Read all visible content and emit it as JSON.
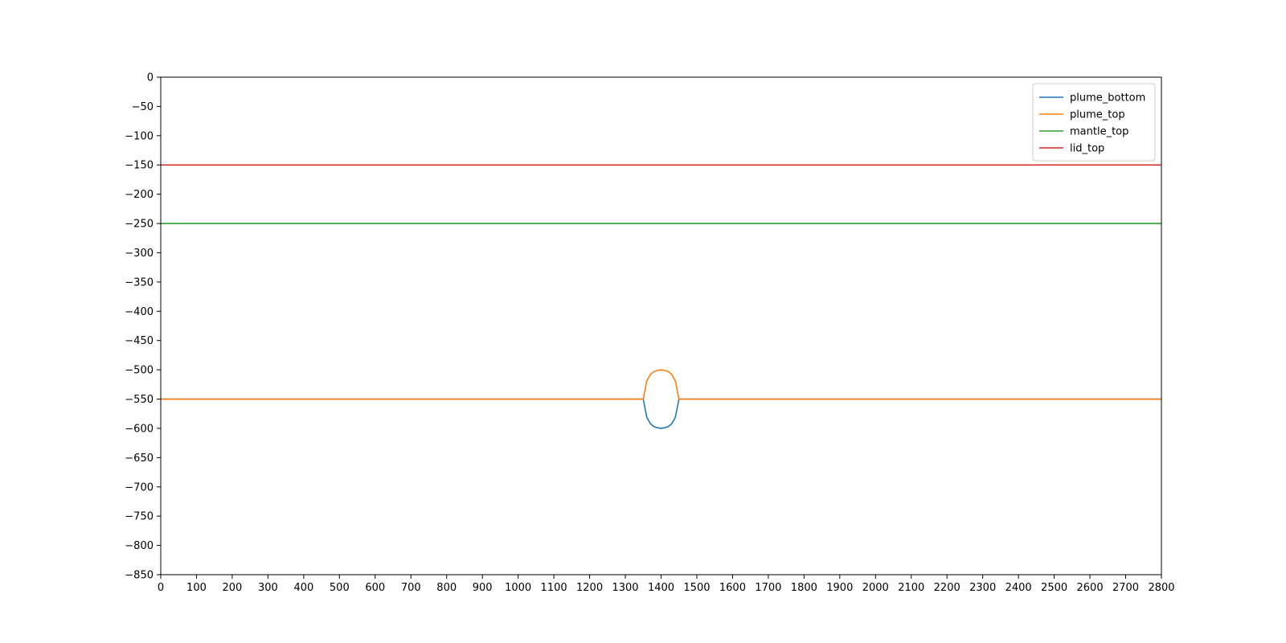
{
  "chart_data": {
    "type": "line",
    "title": "",
    "xlabel": "",
    "ylabel": "",
    "xlim": [
      0,
      2800
    ],
    "ylim": [
      -850,
      0
    ],
    "xticks": [
      0,
      100,
      200,
      300,
      400,
      500,
      600,
      700,
      800,
      900,
      1000,
      1100,
      1200,
      1300,
      1400,
      1500,
      1600,
      1700,
      1800,
      1900,
      2000,
      2100,
      2200,
      2300,
      2400,
      2500,
      2600,
      2700,
      2800
    ],
    "yticks": [
      0,
      -50,
      -100,
      -150,
      -200,
      -250,
      -300,
      -350,
      -400,
      -450,
      -500,
      -550,
      -600,
      -650,
      -700,
      -750,
      -800,
      -850
    ],
    "grid": false,
    "legend_position": "top-right",
    "series": [
      {
        "name": "plume_bottom",
        "color": "#1f77b4",
        "x": [
          0,
          1350,
          1360,
          1370,
          1380,
          1390,
          1400,
          1410,
          1420,
          1430,
          1440,
          1450,
          2800
        ],
        "y": [
          -550,
          -550,
          -581,
          -592,
          -597,
          -599,
          -600,
          -599,
          -597,
          -592,
          -581,
          -550,
          -550
        ]
      },
      {
        "name": "plume_top",
        "color": "#ff7f0e",
        "x": [
          0,
          1350,
          1360,
          1370,
          1380,
          1390,
          1400,
          1410,
          1420,
          1430,
          1440,
          1450,
          2800
        ],
        "y": [
          -550,
          -550,
          -519,
          -508,
          -503,
          -501,
          -500,
          -501,
          -503,
          -508,
          -519,
          -550,
          -550
        ]
      },
      {
        "name": "mantle_top",
        "color": "#2ca02c",
        "x": [
          0,
          2800
        ],
        "y": [
          -250,
          -250
        ]
      },
      {
        "name": "lid_top",
        "color": "#d62728",
        "x": [
          0,
          2800
        ],
        "y": [
          -150,
          -150
        ]
      }
    ]
  }
}
